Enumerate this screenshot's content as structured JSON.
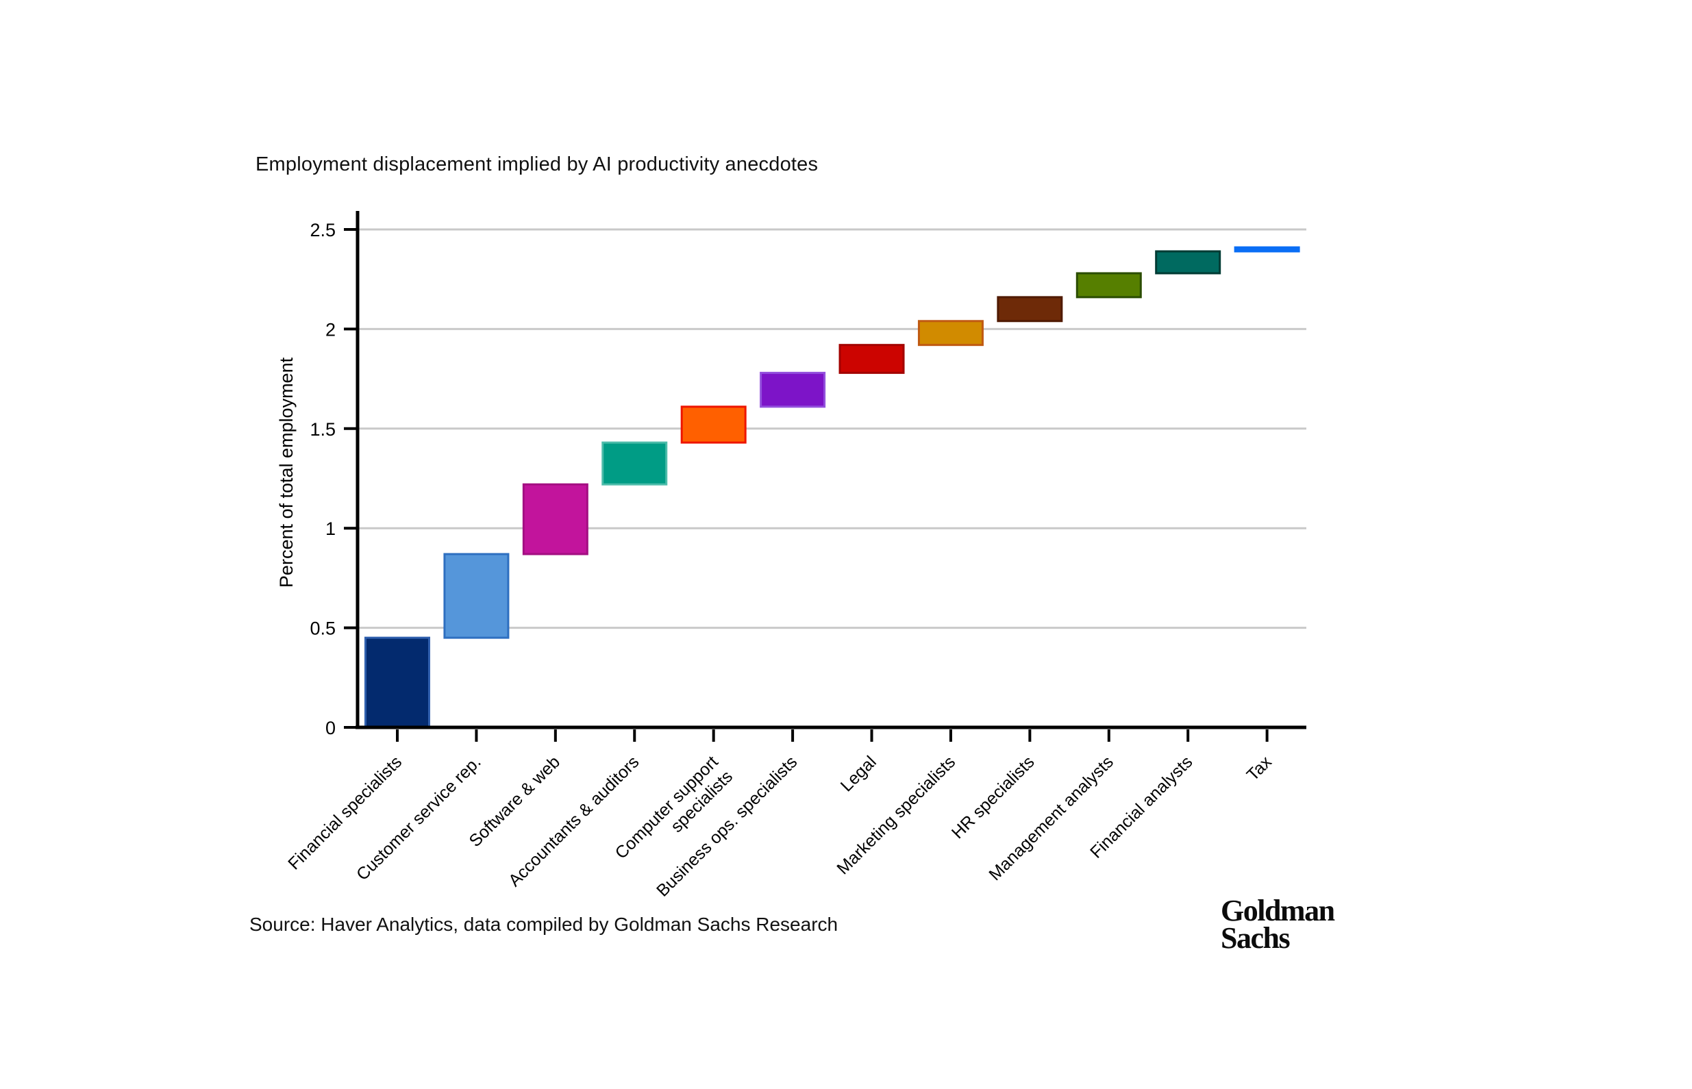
{
  "page": {
    "background": "#ffffff"
  },
  "title": "Employment displacement implied by AI productivity anecdotes",
  "source_note": "Source: Haver Analytics, data compiled by Goldman Sachs Research",
  "logo": {
    "line1": "Goldman",
    "line2": "Sachs"
  },
  "chart_data": {
    "type": "bar",
    "subtype": "waterfall",
    "title": "Employment displacement implied by AI productivity anecdotes",
    "xlabel": "",
    "ylabel": "Percent of total employment",
    "ylim": [
      0,
      2.5
    ],
    "yticks": [
      0,
      0.5,
      1,
      1.5,
      2,
      2.5
    ],
    "grid": "horizontal",
    "grid_color": "#c9c9c9",
    "axis_color": "#000000",
    "label_rotation_deg": 45,
    "bars": [
      {
        "label": "Financial specialists",
        "label_lines": [
          "Financial specialists"
        ],
        "start": 0.0,
        "end": 0.45,
        "value": 0.45,
        "fill": "#032a6e",
        "stroke": "#2f5fae"
      },
      {
        "label": "Customer service rep.",
        "label_lines": [
          "Customer service rep."
        ],
        "start": 0.45,
        "end": 0.87,
        "value": 0.42,
        "fill": "#5596da",
        "stroke": "#2e6fc0"
      },
      {
        "label": "Software & web",
        "label_lines": [
          "Software & web"
        ],
        "start": 0.87,
        "end": 1.22,
        "value": 0.35,
        "fill": "#c2149c",
        "stroke": "#a30f82"
      },
      {
        "label": "Accountants & auditors",
        "label_lines": [
          "Accountants & auditors"
        ],
        "start": 1.22,
        "end": 1.43,
        "value": 0.21,
        "fill": "#009c85",
        "stroke": "#4dbcaa"
      },
      {
        "label": "Computer support specialists",
        "label_lines": [
          "Computer support",
          "specialists"
        ],
        "start": 1.43,
        "end": 1.61,
        "value": 0.18,
        "fill": "#ff6000",
        "stroke": "#ee1500"
      },
      {
        "label": "Business ops. specialists",
        "label_lines": [
          "Business ops. specialists"
        ],
        "start": 1.61,
        "end": 1.78,
        "value": 0.17,
        "fill": "#7d14c8",
        "stroke": "#9350dd"
      },
      {
        "label": "Legal",
        "label_lines": [
          "Legal"
        ],
        "start": 1.78,
        "end": 1.92,
        "value": 0.14,
        "fill": "#cc0400",
        "stroke": "#a30300"
      },
      {
        "label": "Marketing specialists",
        "label_lines": [
          "Marketing specialists"
        ],
        "start": 1.92,
        "end": 2.04,
        "value": 0.12,
        "fill": "#d18b00",
        "stroke": "#c05a12"
      },
      {
        "label": "HR specialists",
        "label_lines": [
          "HR specialists"
        ],
        "start": 2.04,
        "end": 2.16,
        "value": 0.12,
        "fill": "#6e2a08",
        "stroke": "#4f1a02"
      },
      {
        "label": "Management analysts",
        "label_lines": [
          "Management analysts"
        ],
        "start": 2.16,
        "end": 2.28,
        "value": 0.12,
        "fill": "#567f00",
        "stroke": "#2b4d00"
      },
      {
        "label": "Financial analysts",
        "label_lines": [
          "Financial analysts"
        ],
        "start": 2.28,
        "end": 2.39,
        "value": 0.11,
        "fill": "#006a60",
        "stroke": "#003b34"
      },
      {
        "label": "Tax",
        "label_lines": [
          "Tax"
        ],
        "start": 2.39,
        "end": 2.41,
        "value": 0.02,
        "fill": "#0a6ef5",
        "stroke": "#0a6ef5"
      }
    ]
  }
}
